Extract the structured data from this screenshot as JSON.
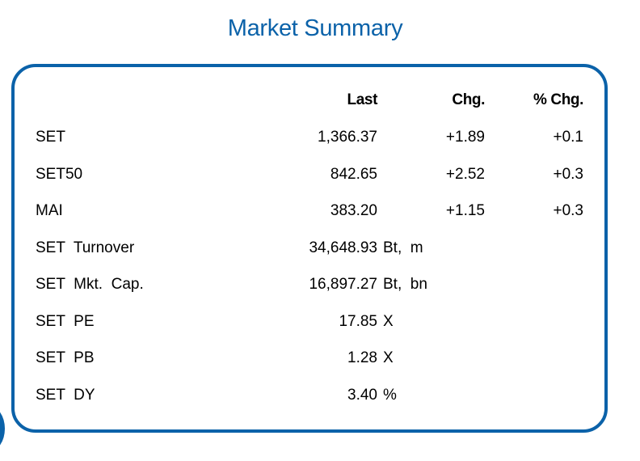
{
  "title": "Market Summary",
  "colors": {
    "accent": "#0b62a9"
  },
  "headers": {
    "last": "Last",
    "chg": "Chg.",
    "pct_chg": "% Chg."
  },
  "rows": [
    {
      "label": "SET",
      "last": "1,366.37",
      "chg": "+1.89",
      "pct": "+0.1"
    },
    {
      "label": "SET50",
      "last": "842.65",
      "chg": "+2.52",
      "pct": "+0.3"
    },
    {
      "label": "MAI",
      "last": "383.20",
      "chg": "+1.15",
      "pct": "+0.3"
    }
  ],
  "stats": [
    {
      "label": "SET  Turnover",
      "value": "34,648.93",
      "unit": "Bt,  m"
    },
    {
      "label": "SET  Mkt.  Cap.",
      "value": "16,897.27",
      "unit": "Bt,  bn"
    },
    {
      "label": "SET  PE",
      "value": "17.85",
      "unit": "X"
    },
    {
      "label": "SET  PB",
      "value": "1.28",
      "unit": "X"
    },
    {
      "label": "SET  DY",
      "value": "3.40",
      "unit": "%"
    }
  ]
}
